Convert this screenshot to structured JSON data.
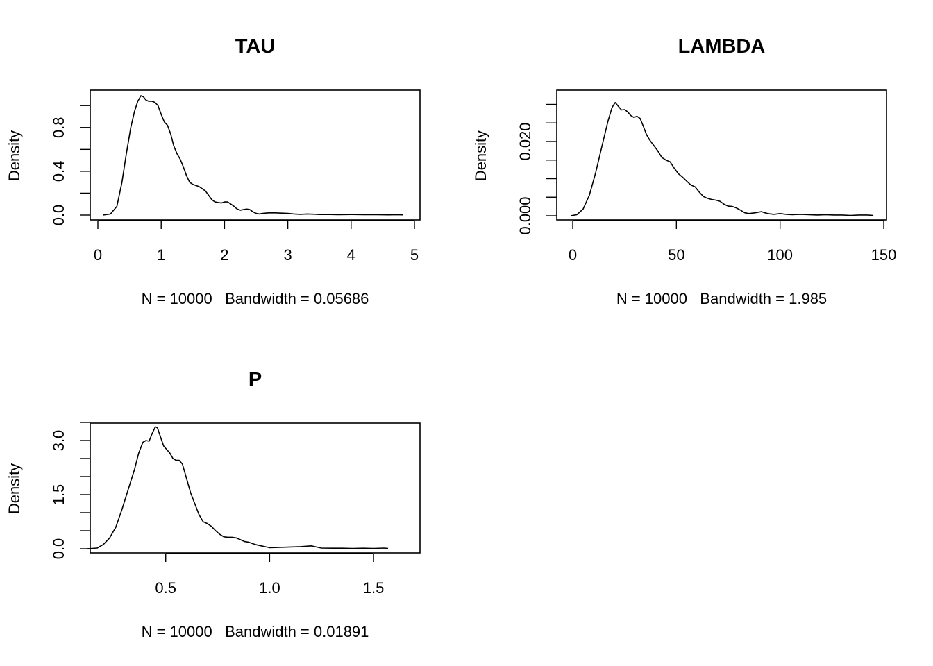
{
  "chart_data": [
    {
      "type": "line",
      "title": "TAU",
      "xlabel": "N = 10000   Bandwidth = 0.05686",
      "ylabel": "Density",
      "xlim": [
        0,
        5
      ],
      "ylim": [
        0,
        1.09
      ],
      "xticks": [
        0,
        1,
        2,
        3,
        4,
        5
      ],
      "xtick_labels": [
        "0",
        "1",
        "2",
        "3",
        "4",
        "5"
      ],
      "yticks": [
        0,
        0.2,
        0.4,
        0.6,
        0.8,
        1.0
      ],
      "ytick_labels": [
        "0.0",
        "",
        "0.4",
        "",
        "0.8",
        ""
      ],
      "grid": false,
      "series": [
        {
          "x": [
            0.08,
            0.2,
            0.3,
            0.38,
            0.45,
            0.52,
            0.58,
            0.63,
            0.68,
            0.72,
            0.76,
            0.8,
            0.85,
            0.9,
            0.95,
            1.0,
            1.05,
            1.1,
            1.15,
            1.2,
            1.25,
            1.3,
            1.35,
            1.4,
            1.45,
            1.5,
            1.55,
            1.6,
            1.65,
            1.7,
            1.75,
            1.8,
            1.85,
            1.9,
            1.95,
            2.0,
            2.05,
            2.1,
            2.15,
            2.2,
            2.25,
            2.3,
            2.35,
            2.4,
            2.45,
            2.5,
            2.55,
            2.6,
            2.7,
            2.8,
            2.9,
            3.0,
            3.1,
            3.2,
            3.3,
            3.4,
            3.5,
            3.6,
            3.8,
            4.0,
            4.2,
            4.4,
            4.6,
            4.7,
            4.82
          ],
          "y": [
            0.0,
            0.01,
            0.08,
            0.3,
            0.56,
            0.8,
            0.95,
            1.04,
            1.09,
            1.08,
            1.05,
            1.04,
            1.04,
            1.03,
            1.0,
            0.92,
            0.85,
            0.82,
            0.74,
            0.63,
            0.56,
            0.51,
            0.44,
            0.36,
            0.3,
            0.28,
            0.27,
            0.26,
            0.24,
            0.22,
            0.18,
            0.14,
            0.12,
            0.115,
            0.11,
            0.12,
            0.12,
            0.1,
            0.08,
            0.055,
            0.045,
            0.05,
            0.055,
            0.05,
            0.03,
            0.015,
            0.01,
            0.015,
            0.02,
            0.02,
            0.018,
            0.015,
            0.01,
            0.007,
            0.01,
            0.008,
            0.005,
            0.006,
            0.004,
            0.005,
            0.003,
            0.003,
            0.002,
            0.003,
            0.002
          ]
        }
      ]
    },
    {
      "type": "line",
      "title": "LAMBDA",
      "xlabel": "N = 10000   Bandwidth = 1.985",
      "ylabel": "Density",
      "xlim": [
        0,
        150
      ],
      "ylim": [
        0,
        0.03
      ],
      "xticks": [
        0,
        50,
        100,
        150
      ],
      "xtick_labels": [
        "0",
        "50",
        "100",
        "150"
      ],
      "yticks": [
        0,
        0.005,
        0.01,
        0.015,
        0.02,
        0.025,
        0.03
      ],
      "ytick_labels": [
        "0.000",
        "",
        "",
        "",
        "0.020",
        "",
        ""
      ],
      "grid": false,
      "series": [
        {
          "x": [
            -1,
            2,
            5,
            8,
            11,
            14,
            17,
            19,
            20.5,
            22,
            23.5,
            25,
            26.5,
            28,
            29.5,
            31,
            32.5,
            34,
            35.5,
            37,
            39,
            41,
            43,
            45,
            47,
            49,
            51,
            53,
            55,
            57,
            59,
            61,
            63,
            65,
            67,
            69,
            71,
            73,
            75,
            77,
            79,
            81,
            83,
            85,
            88,
            91,
            94,
            97,
            100,
            103,
            106,
            110,
            114,
            118,
            122,
            126,
            130,
            134,
            138,
            142,
            145
          ],
          "y": [
            0.0,
            0.0003,
            0.0018,
            0.0055,
            0.0115,
            0.0185,
            0.0255,
            0.0292,
            0.0305,
            0.0295,
            0.0285,
            0.0286,
            0.028,
            0.027,
            0.0265,
            0.0268,
            0.0262,
            0.0242,
            0.022,
            0.0205,
            0.019,
            0.0175,
            0.0157,
            0.015,
            0.0145,
            0.0128,
            0.0113,
            0.0104,
            0.0093,
            0.0083,
            0.0078,
            0.0064,
            0.0052,
            0.0047,
            0.0044,
            0.0042,
            0.0039,
            0.0031,
            0.0026,
            0.0025,
            0.0021,
            0.0015,
            0.0008,
            0.0006,
            0.0008,
            0.0011,
            0.0006,
            0.0004,
            0.0006,
            0.0004,
            0.0003,
            0.0004,
            0.0003,
            0.0002,
            0.0003,
            0.0002,
            0.0002,
            0.0001,
            0.0002,
            0.0002,
            0.0001
          ]
        }
      ]
    },
    {
      "type": "line",
      "title": "P",
      "xlabel": "N = 10000   Bandwidth = 0.01891",
      "ylabel": "Density",
      "xlim": [
        0.08,
        1.6
      ],
      "ylim": [
        0,
        3.5
      ],
      "xticks": [
        0.5,
        1.0,
        1.5
      ],
      "xtick_labels": [
        "0.5",
        "1.0",
        "1.5"
      ],
      "yticks": [
        0,
        0.5,
        1.0,
        1.5,
        2.0,
        2.5,
        3.0,
        3.5
      ],
      "ytick_labels": [
        "0.0",
        "",
        "",
        "1.5",
        "",
        "",
        "3.0",
        ""
      ],
      "grid": false,
      "series": [
        {
          "x": [
            0.12,
            0.17,
            0.2,
            0.23,
            0.26,
            0.29,
            0.32,
            0.35,
            0.37,
            0.39,
            0.405,
            0.42,
            0.435,
            0.45,
            0.46,
            0.475,
            0.49,
            0.505,
            0.52,
            0.535,
            0.55,
            0.565,
            0.58,
            0.6,
            0.62,
            0.64,
            0.66,
            0.68,
            0.7,
            0.72,
            0.74,
            0.76,
            0.78,
            0.8,
            0.82,
            0.84,
            0.86,
            0.88,
            0.9,
            0.93,
            0.96,
            1.0,
            1.05,
            1.1,
            1.15,
            1.2,
            1.25,
            1.3,
            1.35,
            1.4,
            1.45,
            1.5,
            1.55,
            1.57
          ],
          "y": [
            0.0,
            0.02,
            0.12,
            0.3,
            0.6,
            1.1,
            1.65,
            2.2,
            2.65,
            2.95,
            3.0,
            2.98,
            3.2,
            3.38,
            3.35,
            3.1,
            2.85,
            2.75,
            2.65,
            2.5,
            2.45,
            2.45,
            2.35,
            1.95,
            1.55,
            1.25,
            0.95,
            0.75,
            0.7,
            0.62,
            0.5,
            0.4,
            0.33,
            0.32,
            0.32,
            0.3,
            0.25,
            0.2,
            0.18,
            0.12,
            0.08,
            0.03,
            0.04,
            0.05,
            0.06,
            0.08,
            0.02,
            0.015,
            0.015,
            0.01,
            0.015,
            0.01,
            0.02,
            0.01
          ]
        }
      ]
    }
  ]
}
